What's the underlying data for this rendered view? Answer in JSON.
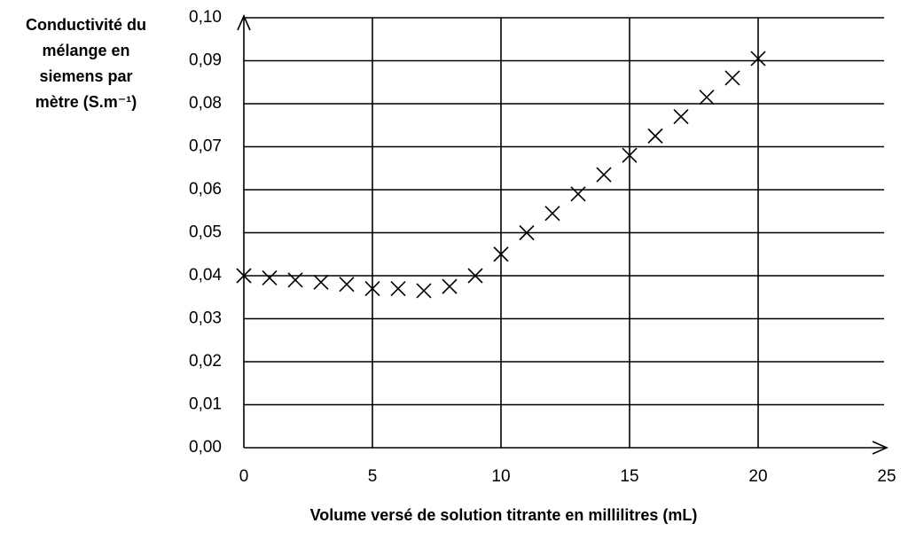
{
  "chart_data": {
    "type": "scatter",
    "y_label_lines": [
      "Conductivité du",
      "mélange en",
      "siemens par",
      "mètre (S.m⁻¹)"
    ],
    "x_label": "Volume versé de solution titrante en millilitres (mL)",
    "x": [
      0,
      1,
      2,
      3,
      4,
      5,
      6,
      7,
      8,
      9,
      10,
      11,
      12,
      13,
      14,
      15,
      16,
      17,
      18,
      19,
      20
    ],
    "series": [
      {
        "color": "#000000",
        "marker": "x",
        "values": [
          0.04,
          0.0395,
          0.039,
          0.0385,
          0.038,
          0.037,
          0.037,
          0.0365,
          0.0375,
          0.04,
          0.045,
          0.05,
          0.0545,
          0.059,
          0.0635,
          0.068,
          0.0725,
          0.077,
          0.0815,
          0.086,
          0.0905
        ]
      }
    ],
    "xlim": [
      0,
      25
    ],
    "xticks": [
      0,
      5,
      10,
      15,
      20,
      25
    ],
    "ylim": [
      0,
      0.1
    ],
    "yticks": [
      {
        "value": 0,
        "label": "0,00"
      },
      {
        "value": 0.01,
        "label": "0,01"
      },
      {
        "value": 0.02,
        "label": "0,02"
      },
      {
        "value": 0.03,
        "label": "0,03"
      },
      {
        "value": 0.04,
        "label": "0,04"
      },
      {
        "value": 0.05,
        "label": "0,05"
      },
      {
        "value": 0.06,
        "label": "0,06"
      },
      {
        "value": 0.07,
        "label": "0,07"
      },
      {
        "value": 0.08,
        "label": "0,08"
      },
      {
        "value": 0.09,
        "label": "0,09"
      },
      {
        "value": 0.1,
        "label": "0,10"
      }
    ],
    "grid": true
  }
}
